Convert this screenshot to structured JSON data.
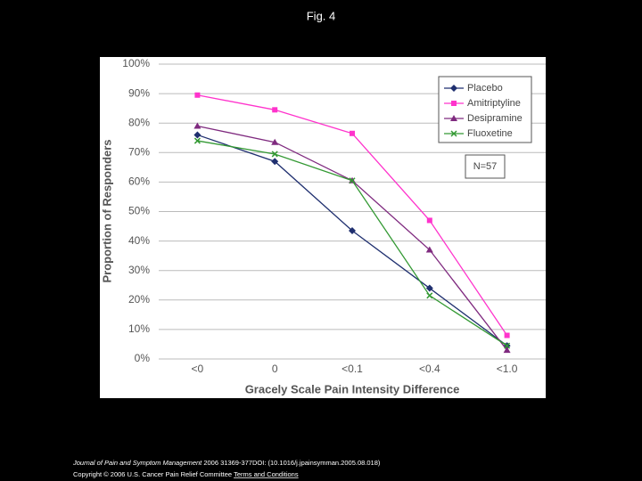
{
  "slide": {
    "title": "Fig. 4"
  },
  "chart_data": {
    "type": "line",
    "x_label": "Gracely Scale Pain Intensity Difference",
    "y_label": "Proportion of Responders",
    "categories": [
      "<0",
      "0",
      "<0.1",
      "<0.4",
      "<1.0"
    ],
    "series": [
      {
        "name": "Placebo",
        "color": "#1f2f6f",
        "marker": "diamond",
        "values": [
          76,
          67,
          43.5,
          24,
          4.5
        ]
      },
      {
        "name": "Amitriptyline",
        "color": "#ff33cc",
        "marker": "square",
        "values": [
          89.5,
          84.5,
          76.5,
          47,
          8
        ]
      },
      {
        "name": "Desipramine",
        "color": "#7f2a7f",
        "marker": "triangle",
        "values": [
          79,
          73.5,
          60.5,
          37,
          3
        ]
      },
      {
        "name": "Fluoxetine",
        "color": "#339933",
        "marker": "x",
        "values": [
          74,
          69.5,
          60.5,
          21.5,
          4.5
        ]
      }
    ],
    "ylim": [
      0,
      100
    ],
    "yticks": [
      {
        "value": 0,
        "label": "0%"
      },
      {
        "value": 10,
        "label": "10%"
      },
      {
        "value": 20,
        "label": "20%"
      },
      {
        "value": 30,
        "label": "30%"
      },
      {
        "value": 40,
        "label": "40%"
      },
      {
        "value": 50,
        "label": "50%"
      },
      {
        "value": 60,
        "label": "60%"
      },
      {
        "value": 70,
        "label": "70%"
      },
      {
        "value": 80,
        "label": "80%"
      },
      {
        "value": 90,
        "label": "90%"
      },
      {
        "value": 100,
        "label": "100%"
      }
    ],
    "grid": true,
    "legend": "upper right",
    "annotation": "N=57"
  },
  "footer": {
    "journal": "Journal of Pain and Symptom Management",
    "reference": "2006 31369-377DOI: (10.1016/j.jpainsymman.2005.08.018)",
    "copyright": "Copyright © 2006 U.S. Cancer Pain Relief Committee",
    "link": "Terms and Conditions"
  }
}
